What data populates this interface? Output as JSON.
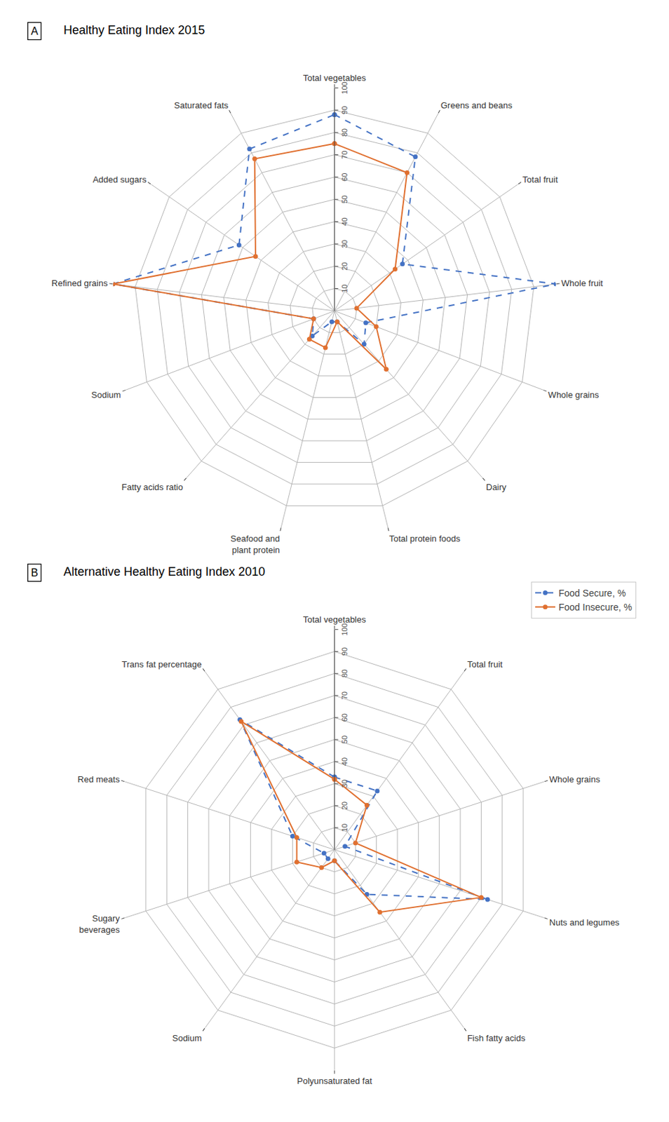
{
  "chart_data": [
    {
      "type": "radar",
      "title": "Healthy Eating Index 2015",
      "annotations": [
        "A"
      ],
      "categories": [
        "Total vegetables",
        "Greens and beans",
        "Total fruit",
        "Whole fruit",
        "Whole grains",
        "Dairy",
        "Total protein foods",
        "Seafood and\nplant protein",
        "Fatty acids ratio",
        "Sodium",
        "Refined grains",
        "Added sugars",
        "Saturated fats"
      ],
      "series": [
        {
          "name": "Food Secure, %",
          "color": "#4472C4",
          "line_style": "dashed",
          "marker": "circle",
          "values": [
            88,
            78,
            37,
            100,
            15,
            20,
            5,
            5,
            15,
            10,
            100,
            52,
            82
          ]
        },
        {
          "name": "Food Insecure, %",
          "color": "#E07030",
          "line_style": "solid",
          "marker": "circle",
          "values": [
            75,
            70,
            33,
            10,
            20,
            35,
            5,
            17,
            17,
            10,
            100,
            43,
            77
          ]
        }
      ],
      "ylim": [
        0,
        100
      ],
      "yticks": [
        10,
        20,
        30,
        40,
        50,
        60,
        70,
        80,
        90,
        100
      ],
      "grid": true
    },
    {
      "type": "radar",
      "title": "Alternative Healthy Eating Index 2010",
      "annotations": [
        "B"
      ],
      "categories": [
        "Total vegetables",
        "Total fruit",
        "Whole grains",
        "Nuts and legumes",
        "Fish fatty acids",
        "Polyunsaturated fat",
        "Sodium",
        "Sugary\nbeverages",
        "Red meats",
        "Trans fat percentage"
      ],
      "series": [
        {
          "name": "Food Secure, %",
          "color": "#4472C4",
          "line_style": "dashed",
          "marker": "circle",
          "values": [
            33,
            33,
            5,
            73,
            25,
            5,
            5,
            5,
            20,
            73
          ]
        },
        {
          "name": "Food Insecure, %",
          "color": "#E07030",
          "line_style": "solid",
          "marker": "circle",
          "values": [
            32,
            25,
            10,
            70,
            35,
            5,
            10,
            18,
            18,
            72
          ]
        }
      ],
      "ylim": [
        0,
        100
      ],
      "yticks": [
        10,
        20,
        30,
        40,
        50,
        60,
        70,
        80,
        90,
        100
      ],
      "grid": true,
      "legend": "upper right"
    }
  ]
}
